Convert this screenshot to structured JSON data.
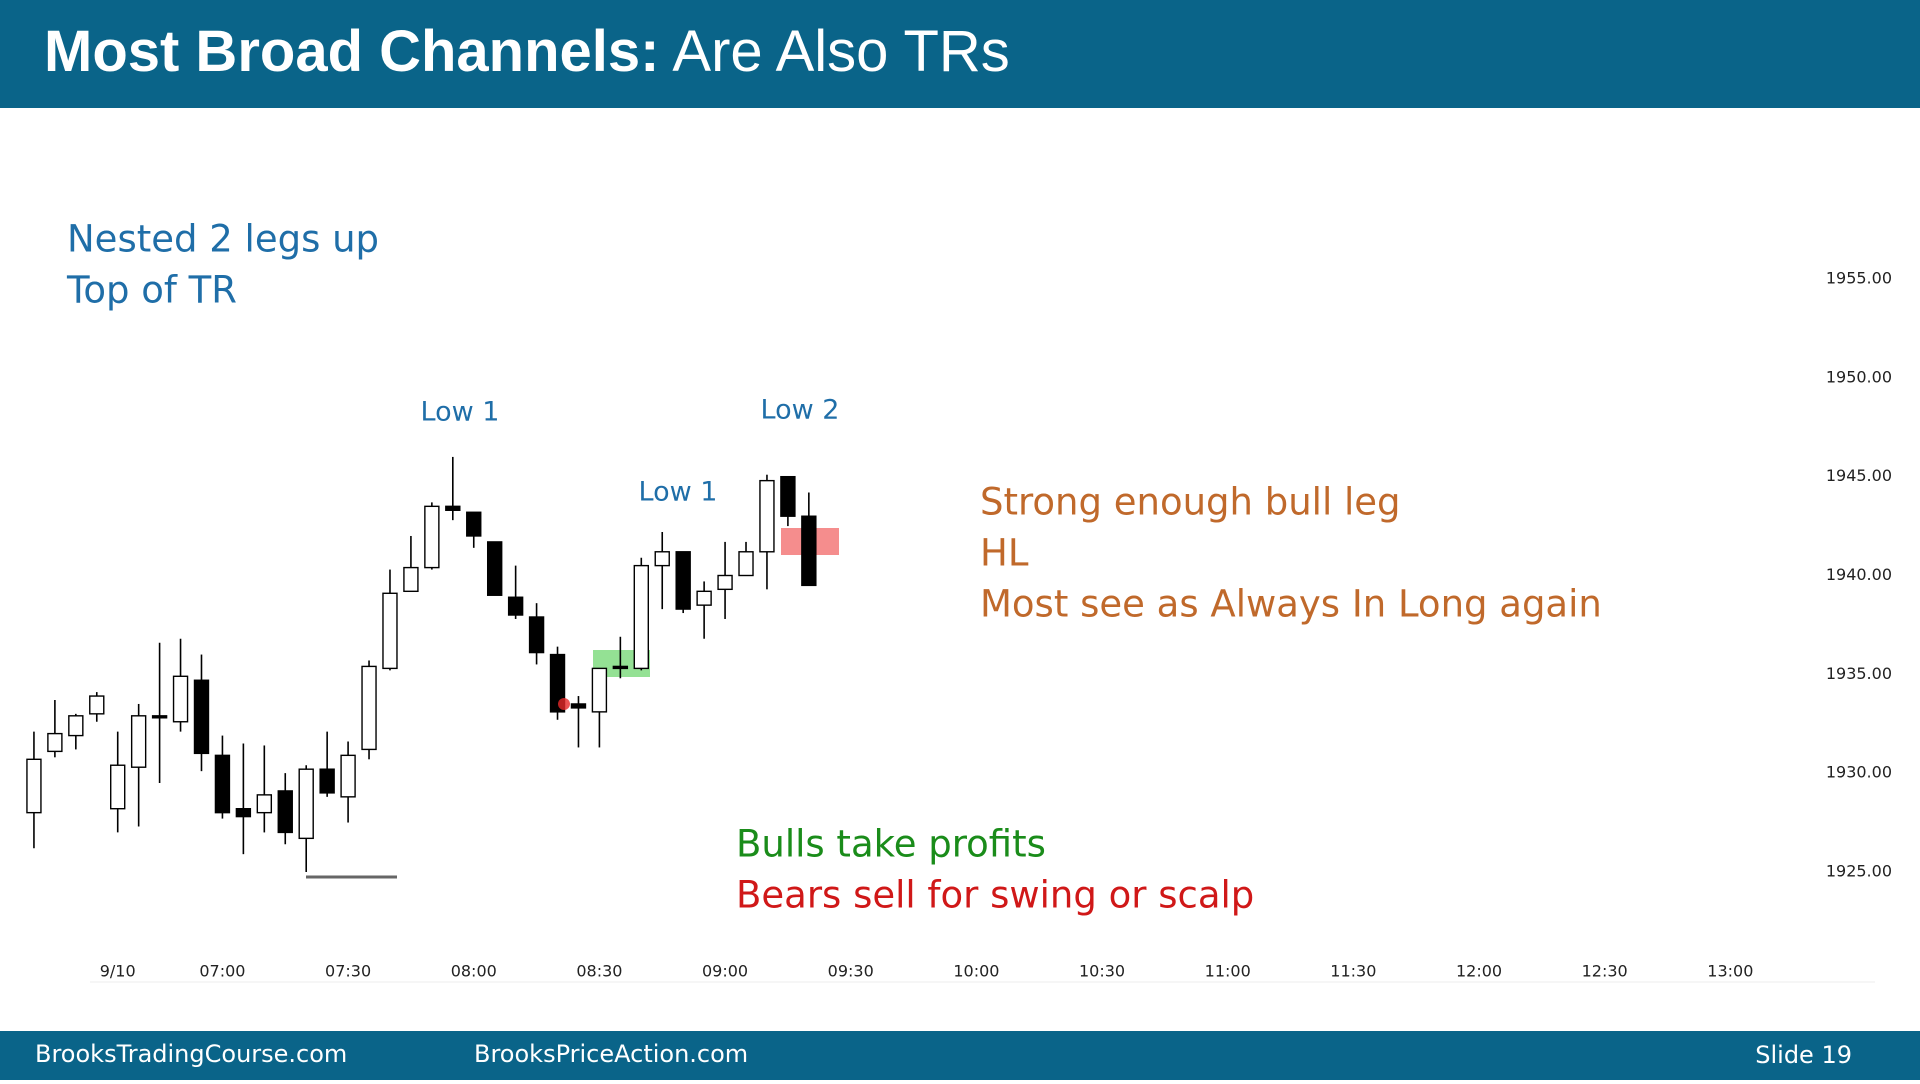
{
  "header": {
    "title_bold": "Most Broad Channels:",
    "title_regular": "Are Also TRs"
  },
  "chart_data": {
    "type": "candlestick",
    "x": [
      "06:15",
      "06:20",
      "06:25",
      "06:30",
      "06:35",
      "06:40",
      "06:45",
      "06:50",
      "06:55",
      "07:00",
      "07:05",
      "07:10",
      "07:15",
      "07:20",
      "07:25",
      "07:30",
      "07:35",
      "07:40",
      "07:45",
      "07:50",
      "07:55",
      "08:00",
      "08:05",
      "08:10",
      "08:15",
      "08:20",
      "08:25",
      "08:30",
      "08:35",
      "08:40",
      "08:45",
      "08:50",
      "08:55",
      "09:00",
      "09:05",
      "09:10",
      "09:15",
      "09:20"
    ],
    "open": [
      1928.0,
      1931.1,
      1931.9,
      1933.0,
      1928.2,
      1930.3,
      1932.9,
      1932.6,
      1934.7,
      1930.9,
      1928.2,
      1928.0,
      1929.1,
      1926.7,
      1930.2,
      1928.8,
      1931.2,
      1935.3,
      1939.2,
      1940.4,
      1943.5,
      1943.2,
      1941.7,
      1938.9,
      1937.9,
      1936.0,
      1933.5,
      1933.1,
      1935.4,
      1935.3,
      1940.5,
      1941.2,
      1938.5,
      1939.3,
      1940.0,
      1941.2,
      1945.0,
      1943.0
    ],
    "high": [
      1932.1,
      1933.7,
      1933.0,
      1934.1,
      1932.1,
      1933.5,
      1936.6,
      1936.8,
      1936.0,
      1931.9,
      1931.5,
      1931.4,
      1930.0,
      1930.4,
      1932.1,
      1931.6,
      1935.7,
      1940.3,
      1942.0,
      1943.7,
      1946.0,
      1943.1,
      1941.7,
      1940.5,
      1938.6,
      1936.4,
      1933.9,
      1935.3,
      1936.9,
      1940.9,
      1942.2,
      1941.2,
      1939.7,
      1941.7,
      1941.7,
      1945.1,
      1945.0,
      1944.2
    ],
    "low": [
      1926.2,
      1930.8,
      1931.2,
      1932.6,
      1927.0,
      1927.3,
      1929.5,
      1932.1,
      1930.1,
      1927.7,
      1925.9,
      1927.0,
      1926.4,
      1925.0,
      1928.8,
      1927.5,
      1930.7,
      1935.2,
      1939.2,
      1940.3,
      1942.8,
      1941.4,
      1939.0,
      1937.8,
      1935.5,
      1932.7,
      1931.3,
      1931.3,
      1934.8,
      1935.2,
      1938.3,
      1938.1,
      1936.8,
      1937.8,
      1940.0,
      1939.3,
      1942.5,
      1939.5
    ],
    "close": [
      1930.7,
      1932.0,
      1932.9,
      1933.9,
      1930.4,
      1932.9,
      1932.8,
      1934.9,
      1931.0,
      1928.0,
      1927.8,
      1928.9,
      1927.0,
      1930.2,
      1929.0,
      1930.9,
      1935.4,
      1939.1,
      1940.4,
      1943.5,
      1943.3,
      1942.0,
      1939.0,
      1938.0,
      1936.1,
      1933.1,
      1933.3,
      1935.3,
      1935.3,
      1940.5,
      1941.2,
      1938.3,
      1939.2,
      1940.0,
      1941.2,
      1944.8,
      1943.0,
      1939.5
    ],
    "up_color": "#ffffff",
    "down_color": "#000000",
    "xlim": [
      "06:10",
      "13:30"
    ],
    "xticks": [
      {
        "value": "06:35",
        "label": "9/10"
      },
      "07:00",
      "07:30",
      "08:00",
      "08:30",
      "09:00",
      "09:30",
      "10:00",
      "10:30",
      "11:00",
      "11:30",
      "12:00",
      "12:30",
      "13:00"
    ],
    "ylim": [
      1921,
      1959
    ],
    "yticks": [
      {
        "value": 1925,
        "label": "1925.00"
      },
      {
        "value": 1930,
        "label": "1930.00"
      },
      {
        "value": 1935,
        "label": "1935.00"
      },
      {
        "value": 1940,
        "label": "1940.00"
      },
      {
        "value": 1945,
        "label": "1945.00"
      },
      {
        "value": 1950,
        "label": "1950.00"
      },
      {
        "value": 1955,
        "label": "1955.00"
      }
    ],
    "annotations": [
      "Nested 2 legs up",
      "Top of TR",
      "Low 1",
      "Low 1",
      "Low 2",
      "Strong enough bull leg",
      "HL",
      "Most see as Always In Long again",
      "Bulls take profits",
      "Bears sell for swing or scalp"
    ]
  },
  "footer": {
    "left": "BrooksTradingCourse.com",
    "middle": "BrooksPriceAction.com",
    "slide": "Slide  19"
  }
}
